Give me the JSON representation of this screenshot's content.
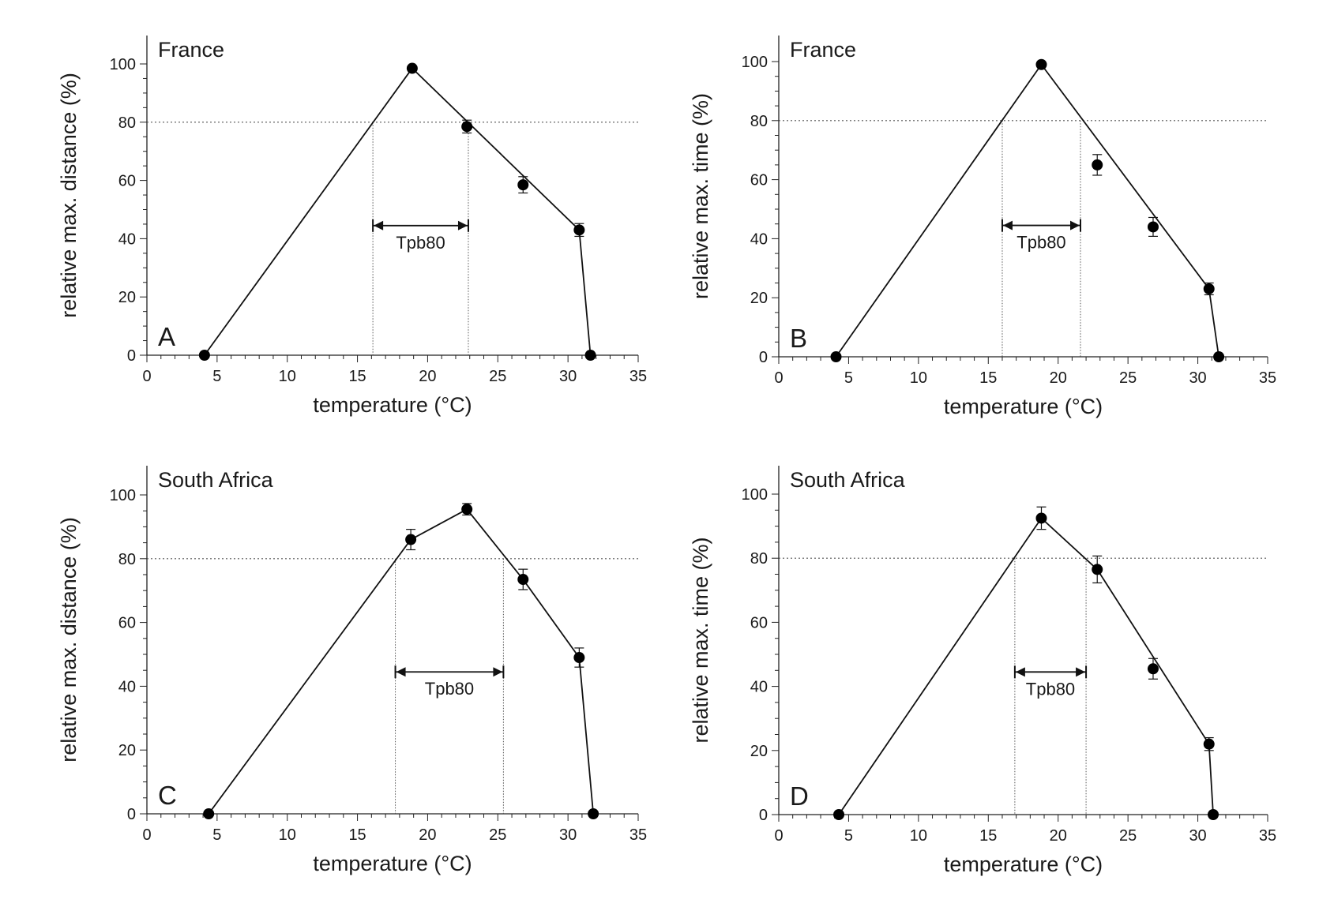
{
  "chart_data": [
    {
      "type": "line",
      "panel_letter": "A",
      "region": "France",
      "xlabel": "temperature (°C)",
      "ylabel": "relative max. distance (%)",
      "xlim": [
        0,
        35
      ],
      "ylim": [
        0,
        100
      ],
      "xticks": [
        "0",
        "5",
        "10",
        "15",
        "20",
        "25",
        "30",
        "35"
      ],
      "yticks": [
        "0",
        "20",
        "40",
        "60",
        "80",
        "100"
      ],
      "reference_line_y": 80,
      "tpb_label": "Tpb80",
      "tpb_range": [
        16.1,
        22.9
      ],
      "points": [
        {
          "x": 4.1,
          "y": 0,
          "err": 0
        },
        {
          "x": 18.9,
          "y": 98.5,
          "err": 0.8
        },
        {
          "x": 22.8,
          "y": 78.5,
          "err": 2.2
        },
        {
          "x": 26.8,
          "y": 58.5,
          "err": 2.8
        },
        {
          "x": 30.8,
          "y": 43,
          "err": 2.2
        },
        {
          "x": 31.6,
          "y": 0,
          "err": 0
        }
      ],
      "fit": [
        [
          4.1,
          0
        ],
        [
          18.9,
          98.5
        ],
        [
          30.8,
          43
        ],
        [
          31.6,
          0
        ]
      ]
    },
    {
      "type": "line",
      "panel_letter": "B",
      "region": "France",
      "xlabel": "temperature (°C)",
      "ylabel": "relative max. time (%)",
      "xlim": [
        0,
        35
      ],
      "ylim": [
        0,
        100
      ],
      "xticks": [
        "0",
        "5",
        "10",
        "15",
        "20",
        "25",
        "30",
        "35"
      ],
      "yticks": [
        "0",
        "20",
        "40",
        "60",
        "80",
        "100"
      ],
      "reference_line_y": 80,
      "tpb_label": "Tpb80",
      "tpb_range": [
        16.0,
        21.6
      ],
      "points": [
        {
          "x": 4.1,
          "y": 0,
          "err": 0
        },
        {
          "x": 18.8,
          "y": 99,
          "err": 0.5
        },
        {
          "x": 22.8,
          "y": 65,
          "err": 3.5
        },
        {
          "x": 26.8,
          "y": 44,
          "err": 3.2
        },
        {
          "x": 30.8,
          "y": 23,
          "err": 2
        },
        {
          "x": 31.5,
          "y": 0,
          "err": 0
        }
      ],
      "fit": [
        [
          4.1,
          0
        ],
        [
          18.8,
          99
        ],
        [
          30.8,
          23
        ],
        [
          31.5,
          0
        ]
      ]
    },
    {
      "type": "line",
      "panel_letter": "C",
      "region": "South Africa",
      "xlabel": "temperature (°C)",
      "ylabel": "relative max. distance (%)",
      "xlim": [
        0,
        35
      ],
      "ylim": [
        0,
        100
      ],
      "xticks": [
        "0",
        "5",
        "10",
        "15",
        "20",
        "25",
        "30",
        "35"
      ],
      "yticks": [
        "0",
        "20",
        "40",
        "60",
        "80",
        "100"
      ],
      "reference_line_y": 80,
      "tpb_label": "Tpb80",
      "tpb_range": [
        17.7,
        25.4
      ],
      "points": [
        {
          "x": 4.4,
          "y": 0,
          "err": 0
        },
        {
          "x": 18.8,
          "y": 86,
          "err": 3.2
        },
        {
          "x": 22.8,
          "y": 95.5,
          "err": 1.8
        },
        {
          "x": 26.8,
          "y": 73.5,
          "err": 3.2
        },
        {
          "x": 30.8,
          "y": 49,
          "err": 3
        },
        {
          "x": 31.8,
          "y": 0,
          "err": 0
        }
      ],
      "fit": [
        [
          4.4,
          0
        ],
        [
          18.8,
          86
        ],
        [
          22.8,
          95.5
        ],
        [
          26.8,
          73.5
        ],
        [
          30.8,
          49
        ],
        [
          31.8,
          0
        ]
      ]
    },
    {
      "type": "line",
      "panel_letter": "D",
      "region": "South Africa",
      "xlabel": "temperature (°C)",
      "ylabel": "relative max. time (%)",
      "xlim": [
        0,
        35
      ],
      "ylim": [
        0,
        100
      ],
      "xticks": [
        "0",
        "5",
        "10",
        "15",
        "20",
        "25",
        "30",
        "35"
      ],
      "yticks": [
        "0",
        "20",
        "40",
        "60",
        "80",
        "100"
      ],
      "reference_line_y": 80,
      "tpb_label": "Tpb80",
      "tpb_range": [
        16.9,
        22.0
      ],
      "points": [
        {
          "x": 4.3,
          "y": 0,
          "err": 0
        },
        {
          "x": 18.8,
          "y": 92.5,
          "err": 3.5
        },
        {
          "x": 22.8,
          "y": 76.5,
          "err": 4.2
        },
        {
          "x": 26.8,
          "y": 45.5,
          "err": 3.2
        },
        {
          "x": 30.8,
          "y": 22,
          "err": 2
        },
        {
          "x": 31.1,
          "y": 0,
          "err": 0
        }
      ],
      "fit": [
        [
          4.3,
          0
        ],
        [
          18.8,
          92.5
        ],
        [
          22.8,
          76.5
        ],
        [
          30.8,
          22
        ],
        [
          31.1,
          0
        ]
      ]
    }
  ]
}
